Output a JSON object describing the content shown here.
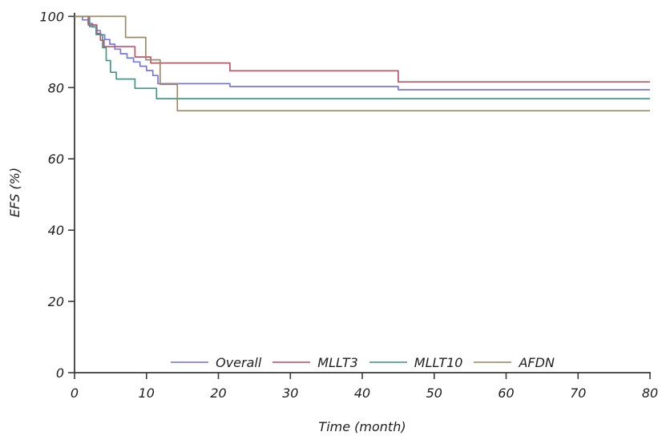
{
  "chart_data": {
    "type": "line",
    "subtype": "kaplan-meier-step",
    "title": "",
    "xlabel": "Time (month)",
    "ylabel": "EFS (%)",
    "xlim": [
      0,
      80
    ],
    "ylim": [
      0,
      100
    ],
    "xticks": [
      0,
      10,
      20,
      30,
      40,
      50,
      60,
      70,
      80
    ],
    "yticks": [
      0,
      20,
      40,
      60,
      80,
      100
    ],
    "grid": false,
    "legend_position": "bottom-inside",
    "axis_color": "#3a3a3a",
    "text_color": "#1f1f1f",
    "series": [
      {
        "name": "Overall",
        "color": "#7678dd",
        "x": [
          0,
          1.1,
          1.9,
          2.5,
          3.1,
          3.6,
          4.2,
          4.9,
          5.6,
          6.4,
          7.3,
          8.2,
          9.1,
          10.0,
          10.9,
          11.6,
          21.6,
          45,
          80
        ],
        "y": [
          100,
          99,
          98,
          97,
          96,
          94.8,
          93.5,
          92.2,
          90.8,
          89.5,
          88.3,
          87.2,
          86,
          84.8,
          83.4,
          81.1,
          80.3,
          79.4,
          79.4
        ]
      },
      {
        "name": "MLLT3",
        "color": "#c05568",
        "x": [
          0,
          1.9,
          3.1,
          3.6,
          4.1,
          8.4,
          10.6,
          21.6,
          45,
          80
        ],
        "y": [
          100,
          97.6,
          95.2,
          93.3,
          91.5,
          88.6,
          86.9,
          84.7,
          81.6,
          81.6
        ]
      },
      {
        "name": "MLLT10",
        "color": "#46978b",
        "x": [
          0,
          2.1,
          3.0,
          3.9,
          4.4,
          5.0,
          5.8,
          8.4,
          11.4,
          80
        ],
        "y": [
          100,
          97.1,
          94.9,
          91.2,
          87.6,
          84.3,
          82.4,
          79.8,
          76.9,
          76.9
        ]
      },
      {
        "name": "AFDN",
        "color": "#9e8a67",
        "x": [
          0,
          7.1,
          9.9,
          11.9,
          14.3,
          80
        ],
        "y": [
          100,
          94.1,
          87.8,
          80.9,
          73.5,
          73.5
        ]
      }
    ]
  }
}
